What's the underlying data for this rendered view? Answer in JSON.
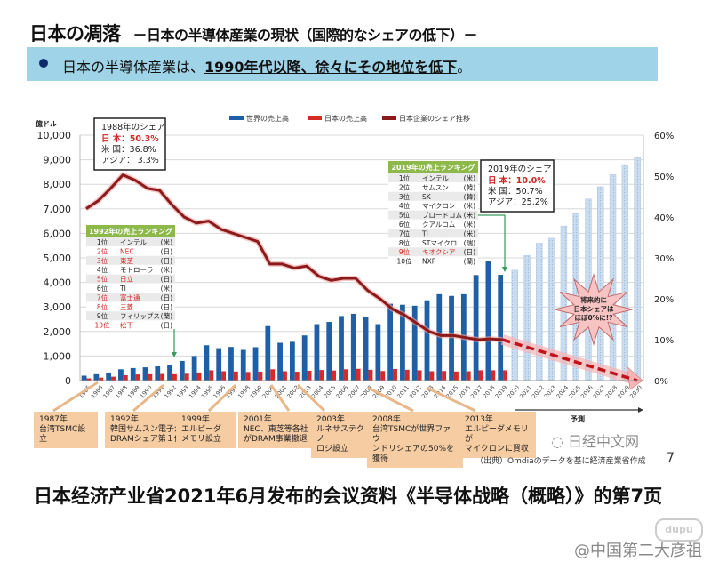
{
  "slide": {
    "title_main": "日本の凋落",
    "title_sub": "－日本の半導体産業の現状（国際的なシェアの低下）－",
    "banner_prefix": "日本の半導体産業は、",
    "banner_emphasis": "1990年代以降、徐々にその地位を低下",
    "banner_suffix": "。",
    "source": "（出典）Omdiaのデータを基に経済産業省作成",
    "page_number": "7",
    "nikkei_watermark": "日经中文网",
    "forecast_label": "予測",
    "callout_forecast": [
      "将来的に",
      "日本シェアは",
      "ほぼ0%に!?"
    ],
    "share_1988": {
      "title": "1988年のシェア",
      "rows": [
        {
          "label": "日 本：50.3%",
          "highlight": true
        },
        {
          "label": "米 国：36.8%",
          "highlight": false
        },
        {
          "label": "アジア：  3.3%",
          "highlight": false
        }
      ]
    },
    "share_2019": {
      "title": "2019年のシェア",
      "rows": [
        {
          "label": "日 本：10.0%",
          "highlight": true
        },
        {
          "label": "米 国：50.7%",
          "highlight": false
        },
        {
          "label": "アジア：25.2%",
          "highlight": false
        }
      ]
    },
    "ranking_1992": {
      "title": "1992年の売上ランキング",
      "rows": [
        {
          "rank": "1位",
          "company": "インテル",
          "country": "(米)",
          "japan": false
        },
        {
          "rank": "2位",
          "company": "NEC",
          "country": "(日)",
          "japan": true
        },
        {
          "rank": "3位",
          "company": "東芝",
          "country": "(日)",
          "japan": true
        },
        {
          "rank": "4位",
          "company": "モトローラ",
          "country": "(米)",
          "japan": false
        },
        {
          "rank": "5位",
          "company": "日立",
          "country": "(日)",
          "japan": true
        },
        {
          "rank": "6位",
          "company": "TI",
          "country": "(米)",
          "japan": false
        },
        {
          "rank": "7位",
          "company": "富士通",
          "country": "(日)",
          "japan": true
        },
        {
          "rank": "8位",
          "company": "三菱",
          "country": "(日)",
          "japan": true
        },
        {
          "rank": "9位",
          "company": "フィリップス",
          "country": "(蘭)",
          "japan": false
        },
        {
          "rank": "10位",
          "company": "松下",
          "country": "(日)",
          "japan": true
        }
      ]
    },
    "ranking_2019": {
      "title": "2019年の売上ランキング",
      "rows": [
        {
          "rank": "1位",
          "company": "インテル",
          "country": "(米)",
          "japan": false
        },
        {
          "rank": "2位",
          "company": "サムスン",
          "country": "(韓)",
          "japan": false
        },
        {
          "rank": "3位",
          "company": "SK",
          "country": "(韓)",
          "japan": false
        },
        {
          "rank": "4位",
          "company": "マイクロン",
          "country": "(米)",
          "japan": false
        },
        {
          "rank": "5位",
          "company": "ブロードコム",
          "country": "(米)",
          "japan": false
        },
        {
          "rank": "6位",
          "company": "クアルコム",
          "country": "(米)",
          "japan": false
        },
        {
          "rank": "7位",
          "company": "TI",
          "country": "(米)",
          "japan": false
        },
        {
          "rank": "8位",
          "company": "STマイクロ",
          "country": "(瑞)",
          "japan": false
        },
        {
          "rank": "9位",
          "company": "キオクシア",
          "country": "(日)",
          "japan": true
        },
        {
          "rank": "10位",
          "company": "NXP",
          "country": "(蘭)",
          "japan": false
        }
      ]
    },
    "events": [
      {
        "year": "1987年",
        "text": [
          "台湾TSMC設立"
        ]
      },
      {
        "year": "1992年",
        "text": [
          "韓国サムスン電子が",
          "DRAMシェア第１位"
        ]
      },
      {
        "year": "1999年",
        "text": [
          "エルピーダ",
          "メモリ設立"
        ]
      },
      {
        "year": "2001年",
        "text": [
          "NEC、東芝等各社",
          "がDRAM事業撤退"
        ]
      },
      {
        "year": "2003年",
        "text": [
          "ルネサステクノ",
          "ロジ設立"
        ]
      },
      {
        "year": "2008年",
        "text": [
          "台湾TSMCが世界ファウ",
          "ンドリシェアの50%を獲得"
        ]
      },
      {
        "year": "2013年",
        "text": [
          "エルピーダメモリが",
          "マイクロンに買収"
        ]
      }
    ]
  },
  "caption": "日本经济产业省2021年6月发布的会议资料《半导体战略（概略）》的第7页",
  "credit": "@中国第二大彦祖",
  "watermark_small": "dupu",
  "colors": {
    "world": "#1f5fa6",
    "japan": "#d62a2a",
    "share": "#8b1a1a",
    "forecast": "#c9dbef",
    "banner": "#9fd3e8",
    "green": "#8db84a",
    "event": "#f6cca3"
  },
  "chart_data": {
    "type": "bar",
    "title": "",
    "ylabel": "億ドル",
    "ylabel_right": "",
    "ylim": [
      0,
      10000
    ],
    "ylim_right": [
      0,
      60
    ],
    "yticks": [
      "0",
      "1,000",
      "2,000",
      "3,000",
      "4,000",
      "5,000",
      "6,000",
      "7,000",
      "8,000",
      "9,000",
      "10,000"
    ],
    "yticks_right": [
      "0%",
      "10%",
      "20%",
      "30%",
      "40%",
      "50%",
      "60%"
    ],
    "grid": true,
    "legend_position": "top",
    "categories": [
      "1985",
      "1986",
      "1987",
      "1988",
      "1989",
      "1990",
      "1991",
      "1992",
      "1993",
      "1994",
      "1995",
      "1996",
      "1997",
      "1998",
      "1999",
      "2000",
      "2001",
      "2002",
      "2003",
      "2004",
      "2005",
      "2006",
      "2007",
      "2008",
      "2009",
      "2010",
      "2011",
      "2012",
      "2013",
      "2014",
      "2015",
      "2016",
      "2017",
      "2018",
      "2019",
      "2020",
      "2021",
      "2022",
      "2023",
      "2024",
      "2025",
      "2026",
      "2027",
      "2028",
      "2029",
      "2030"
    ],
    "series": [
      {
        "name": "世界の売上高",
        "kind": "bar",
        "axis": "left",
        "values": [
          200,
          260,
          330,
          460,
          510,
          540,
          580,
          620,
          800,
          1000,
          1440,
          1320,
          1370,
          1250,
          1360,
          2220,
          1540,
          1580,
          1840,
          2300,
          2390,
          2630,
          2720,
          2580,
          2300,
          3130,
          3090,
          3050,
          3270,
          3520,
          3450,
          3520,
          4300,
          4860,
          4310,
          null,
          null,
          null,
          null,
          null,
          null,
          null,
          null,
          null,
          null,
          null
        ]
      },
      {
        "name": "世界の売上高（予測）",
        "kind": "bar-forecast",
        "axis": "left",
        "values": [
          null,
          null,
          null,
          null,
          null,
          null,
          null,
          null,
          null,
          null,
          null,
          null,
          null,
          null,
          null,
          null,
          null,
          null,
          null,
          null,
          null,
          null,
          null,
          null,
          null,
          null,
          null,
          null,
          null,
          null,
          null,
          null,
          null,
          null,
          null,
          4500,
          5100,
          5600,
          5800,
          6300,
          6800,
          7400,
          7900,
          8400,
          8800,
          9100
        ]
      },
      {
        "name": "日本の売上高",
        "kind": "bar",
        "axis": "left",
        "values": [
          90,
          120,
          160,
          220,
          250,
          260,
          270,
          260,
          280,
          330,
          420,
          380,
          370,
          350,
          360,
          460,
          380,
          360,
          400,
          430,
          410,
          460,
          480,
          440,
          390,
          470,
          440,
          420,
          380,
          390,
          370,
          380,
          420,
          420,
          420,
          null,
          null,
          null,
          null,
          null,
          null,
          null,
          null,
          null,
          null,
          null
        ]
      },
      {
        "name": "日本企業のシェア推移",
        "kind": "line",
        "axis": "right",
        "values": [
          42,
          44,
          47,
          50.3,
          49,
          47,
          46.5,
          43,
          40,
          38.5,
          39,
          37,
          36,
          35,
          34,
          28.5,
          28.5,
          27.5,
          28,
          25.5,
          24.5,
          25,
          25,
          22,
          20,
          17.5,
          16,
          14,
          12,
          11,
          11,
          10.5,
          10,
          10.2,
          10,
          null,
          null,
          null,
          null,
          null,
          null,
          null,
          null,
          null,
          null,
          null
        ]
      },
      {
        "name": "日本企業のシェア推移（予測）",
        "kind": "dashed-arrow",
        "axis": "right",
        "values": [
          null,
          null,
          null,
          null,
          null,
          null,
          null,
          null,
          null,
          null,
          null,
          null,
          null,
          null,
          null,
          null,
          null,
          null,
          null,
          null,
          null,
          null,
          null,
          null,
          null,
          null,
          null,
          null,
          null,
          null,
          null,
          null,
          null,
          null,
          10,
          9.5,
          8.5,
          7.5,
          6.5,
          5.5,
          4.5,
          3.5,
          2.5,
          1.8,
          1.0,
          0
        ]
      }
    ],
    "legend": [
      "世界の売上高",
      "日本の売上高",
      "日本企業のシェア推移"
    ]
  }
}
